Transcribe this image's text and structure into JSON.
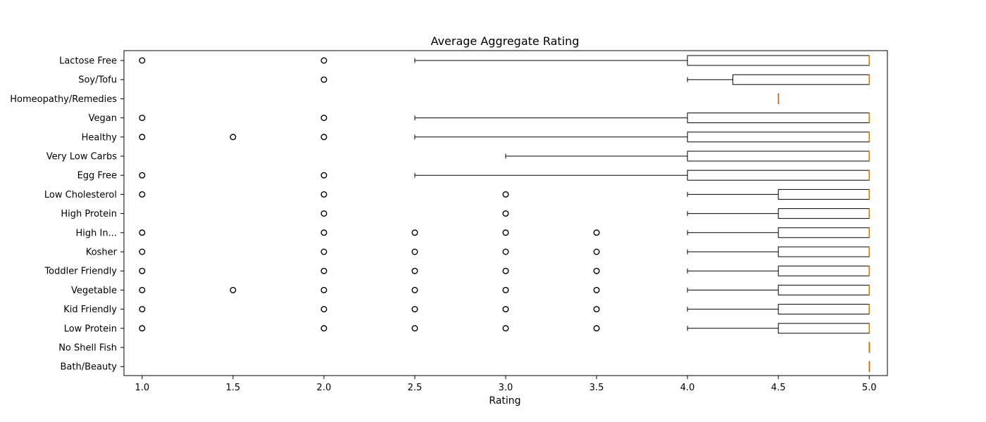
{
  "chart_data": {
    "type": "boxplot",
    "orientation": "horizontal",
    "title": "Average Aggregate Rating",
    "xlabel": "Rating",
    "ylabel": "",
    "xlim": [
      0.9,
      5.1
    ],
    "xticks": [
      1.0,
      1.5,
      2.0,
      2.5,
      3.0,
      3.5,
      4.0,
      4.5,
      5.0
    ],
    "xtick_labels": [
      "1.0",
      "1.5",
      "2.0",
      "2.5",
      "3.0",
      "3.5",
      "4.0",
      "4.5",
      "5.0"
    ],
    "grid": false,
    "colors": {
      "box": "#000000",
      "median": "#e07b00",
      "flier": "#000000"
    },
    "categories": [
      {
        "label": "Lactose Free",
        "whisker_low": 2.5,
        "q1": 4.0,
        "median": 5.0,
        "q3": 5.0,
        "whisker_high": 5.0,
        "fliers": [
          1.0,
          2.0
        ]
      },
      {
        "label": "Soy/Tofu",
        "whisker_low": 4.0,
        "q1": 4.25,
        "median": 5.0,
        "q3": 5.0,
        "whisker_high": 5.0,
        "fliers": [
          2.0
        ]
      },
      {
        "label": "Homeopathy/Remedies",
        "whisker_low": 4.5,
        "q1": 4.5,
        "median": 4.5,
        "q3": 4.5,
        "whisker_high": 4.5,
        "fliers": []
      },
      {
        "label": "Vegan",
        "whisker_low": 2.5,
        "q1": 4.0,
        "median": 5.0,
        "q3": 5.0,
        "whisker_high": 5.0,
        "fliers": [
          1.0,
          2.0
        ]
      },
      {
        "label": "Healthy",
        "whisker_low": 2.5,
        "q1": 4.0,
        "median": 5.0,
        "q3": 5.0,
        "whisker_high": 5.0,
        "fliers": [
          1.0,
          1.5,
          2.0
        ]
      },
      {
        "label": "Very Low Carbs",
        "whisker_low": 3.0,
        "q1": 4.0,
        "median": 5.0,
        "q3": 5.0,
        "whisker_high": 5.0,
        "fliers": []
      },
      {
        "label": "Egg Free",
        "whisker_low": 2.5,
        "q1": 4.0,
        "median": 5.0,
        "q3": 5.0,
        "whisker_high": 5.0,
        "fliers": [
          1.0,
          2.0
        ]
      },
      {
        "label": "Low Cholesterol",
        "whisker_low": 4.0,
        "q1": 4.5,
        "median": 5.0,
        "q3": 5.0,
        "whisker_high": 5.0,
        "fliers": [
          1.0,
          2.0,
          3.0
        ]
      },
      {
        "label": "High Protein",
        "whisker_low": 4.0,
        "q1": 4.5,
        "median": 5.0,
        "q3": 5.0,
        "whisker_high": 5.0,
        "fliers": [
          2.0,
          3.0
        ]
      },
      {
        "label": "High In...",
        "whisker_low": 4.0,
        "q1": 4.5,
        "median": 5.0,
        "q3": 5.0,
        "whisker_high": 5.0,
        "fliers": [
          1.0,
          2.0,
          2.5,
          3.0,
          3.5
        ]
      },
      {
        "label": "Kosher",
        "whisker_low": 4.0,
        "q1": 4.5,
        "median": 5.0,
        "q3": 5.0,
        "whisker_high": 5.0,
        "fliers": [
          1.0,
          2.0,
          2.5,
          3.0,
          3.5
        ]
      },
      {
        "label": "Toddler Friendly",
        "whisker_low": 4.0,
        "q1": 4.5,
        "median": 5.0,
        "q3": 5.0,
        "whisker_high": 5.0,
        "fliers": [
          1.0,
          2.0,
          2.5,
          3.0,
          3.5
        ]
      },
      {
        "label": "Vegetable",
        "whisker_low": 4.0,
        "q1": 4.5,
        "median": 5.0,
        "q3": 5.0,
        "whisker_high": 5.0,
        "fliers": [
          1.0,
          1.5,
          2.0,
          2.5,
          3.0,
          3.5
        ]
      },
      {
        "label": "Kid Friendly",
        "whisker_low": 4.0,
        "q1": 4.5,
        "median": 5.0,
        "q3": 5.0,
        "whisker_high": 5.0,
        "fliers": [
          1.0,
          2.0,
          2.5,
          3.0,
          3.5
        ]
      },
      {
        "label": "Low Protein",
        "whisker_low": 4.0,
        "q1": 4.5,
        "median": 5.0,
        "q3": 5.0,
        "whisker_high": 5.0,
        "fliers": [
          1.0,
          2.0,
          2.5,
          3.0,
          3.5
        ]
      },
      {
        "label": "No Shell Fish",
        "whisker_low": 5.0,
        "q1": 5.0,
        "median": 5.0,
        "q3": 5.0,
        "whisker_high": 5.0,
        "fliers": []
      },
      {
        "label": "Bath/Beauty",
        "whisker_low": 5.0,
        "q1": 5.0,
        "median": 5.0,
        "q3": 5.0,
        "whisker_high": 5.0,
        "fliers": []
      }
    ]
  }
}
